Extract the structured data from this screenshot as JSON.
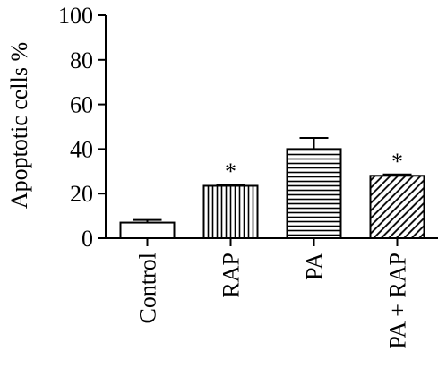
{
  "chart_data": {
    "type": "bar",
    "title": "",
    "xlabel": "",
    "ylabel": "Apoptotic cells %",
    "ylim": [
      0,
      100
    ],
    "yticks": [
      0,
      20,
      40,
      60,
      80,
      100
    ],
    "grid": false,
    "categories": [
      "Control",
      "RAP",
      "PA",
      "PA + RAP"
    ],
    "values": [
      7,
      23.5,
      40,
      28
    ],
    "errors": [
      1.2,
      0.5,
      5,
      0.6
    ],
    "patterns": [
      "none",
      "vertical-lines",
      "horizontal-lines",
      "diagonal-lines"
    ],
    "annotations": [
      "",
      "*",
      "",
      "*"
    ]
  }
}
